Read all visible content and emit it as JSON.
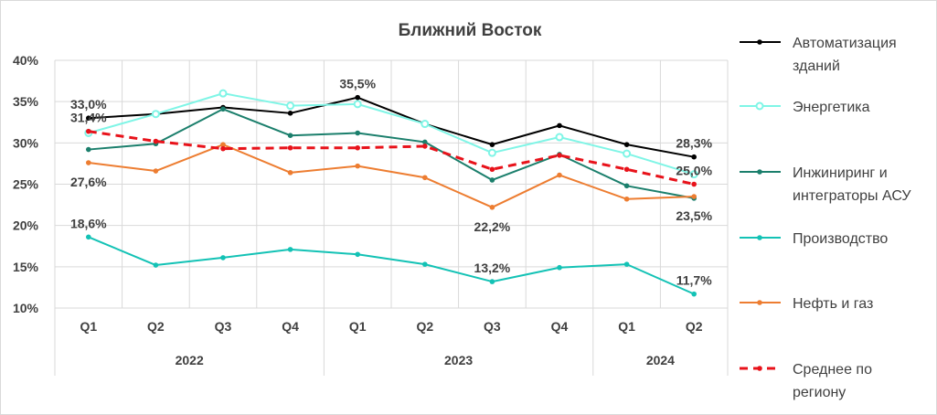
{
  "chart_data": {
    "type": "line",
    "title": "Ближний Восток",
    "xlabel": "",
    "ylabel": "",
    "ylim": [
      10,
      40
    ],
    "yticks": [
      10,
      15,
      20,
      25,
      30,
      35,
      40
    ],
    "ytick_suffix": "%",
    "categories": [
      "Q1",
      "Q2",
      "Q3",
      "Q4",
      "Q1",
      "Q2",
      "Q3",
      "Q4",
      "Q1",
      "Q2"
    ],
    "years": [
      {
        "label": "2022",
        "count": 4
      },
      {
        "label": "2023",
        "count": 4
      },
      {
        "label": "2024",
        "count": 2
      }
    ],
    "grid": true,
    "legend_position": "right",
    "series": [
      {
        "name": "Автоматизация\nзданий",
        "color": "#000000",
        "marker": "dot",
        "dash": false,
        "values": [
          33.0,
          33.5,
          34.3,
          33.6,
          35.5,
          32.3,
          29.8,
          32.1,
          29.8,
          28.3
        ]
      },
      {
        "name": "Энергетика",
        "color": "#7ff5e6",
        "marker": "ring",
        "dash": false,
        "values": [
          31.2,
          33.5,
          36.0,
          34.5,
          34.7,
          32.3,
          28.8,
          30.7,
          28.7,
          26.2
        ]
      },
      {
        "name": "Инжиниринг и\nинтеграторы АСУ",
        "color": "#1b7f6c",
        "marker": "dot",
        "dash": false,
        "values": [
          29.2,
          29.9,
          34.1,
          30.9,
          31.2,
          30.1,
          25.5,
          28.6,
          24.8,
          23.3
        ]
      },
      {
        "name": "Производство",
        "color": "#13c2b5",
        "marker": "dot",
        "dash": false,
        "values": [
          18.6,
          15.2,
          16.1,
          17.1,
          16.5,
          15.3,
          13.2,
          14.9,
          15.3,
          11.7
        ]
      },
      {
        "name": "Нефть и газ",
        "color": "#ed7d31",
        "marker": "dot",
        "dash": false,
        "values": [
          27.6,
          26.6,
          29.8,
          26.4,
          27.2,
          25.8,
          22.2,
          26.1,
          23.2,
          23.5
        ]
      },
      {
        "name": "Среднее по\nрегиону",
        "color": "#e8121a",
        "marker": "dot",
        "dash": true,
        "values": [
          31.4,
          30.2,
          29.3,
          29.4,
          29.4,
          29.6,
          26.8,
          28.5,
          26.8,
          25.0
        ]
      }
    ],
    "data_labels": [
      {
        "series": 0,
        "index": 0,
        "text": "33,0%",
        "pos": "above"
      },
      {
        "series": 0,
        "index": 4,
        "text": "35,5%",
        "pos": "above"
      },
      {
        "series": 0,
        "index": 9,
        "text": "28,3%",
        "pos": "above"
      },
      {
        "series": 5,
        "index": 0,
        "text": "31,4%",
        "pos": "above"
      },
      {
        "series": 5,
        "index": 9,
        "text": "25,0%",
        "pos": "above"
      },
      {
        "series": 4,
        "index": 0,
        "text": "27,6%",
        "pos": "below"
      },
      {
        "series": 4,
        "index": 6,
        "text": "22,2%",
        "pos": "below"
      },
      {
        "series": 4,
        "index": 9,
        "text": "23,5%",
        "pos": "below"
      },
      {
        "series": 3,
        "index": 0,
        "text": "18,6%",
        "pos": "above"
      },
      {
        "series": 3,
        "index": 6,
        "text": "13,2%",
        "pos": "above"
      },
      {
        "series": 3,
        "index": 9,
        "text": "11,7%",
        "pos": "above"
      }
    ]
  }
}
